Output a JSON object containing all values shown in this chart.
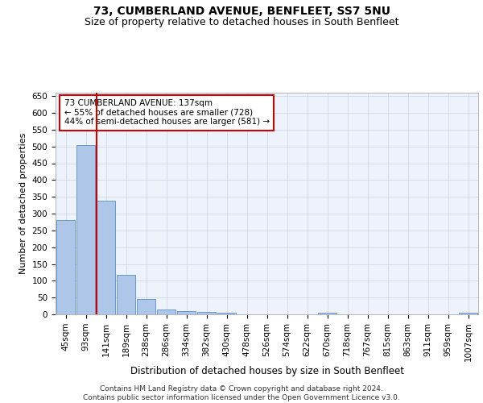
{
  "title1": "73, CUMBERLAND AVENUE, BENFLEET, SS7 5NU",
  "title2": "Size of property relative to detached houses in South Benfleet",
  "xlabel": "Distribution of detached houses by size in South Benfleet",
  "ylabel": "Number of detached properties",
  "categories": [
    "45sqm",
    "93sqm",
    "141sqm",
    "189sqm",
    "238sqm",
    "286sqm",
    "334sqm",
    "382sqm",
    "430sqm",
    "478sqm",
    "526sqm",
    "574sqm",
    "622sqm",
    "670sqm",
    "718sqm",
    "767sqm",
    "815sqm",
    "863sqm",
    "911sqm",
    "959sqm",
    "1007sqm"
  ],
  "values": [
    280,
    505,
    338,
    118,
    46,
    15,
    10,
    8,
    5,
    0,
    0,
    0,
    0,
    6,
    0,
    0,
    0,
    0,
    0,
    0,
    5
  ],
  "bar_color": "#aec6e8",
  "bar_edge_color": "#5a8fc4",
  "highlight_bar_index": 2,
  "highlight_color": "#cc0000",
  "annotation_text": "73 CUMBERLAND AVENUE: 137sqm\n← 55% of detached houses are smaller (728)\n44% of semi-detached houses are larger (581) →",
  "annotation_box_color": "#cc0000",
  "ylim": [
    0,
    660
  ],
  "yticks": [
    0,
    50,
    100,
    150,
    200,
    250,
    300,
    350,
    400,
    450,
    500,
    550,
    600,
    650
  ],
  "footer": "Contains HM Land Registry data © Crown copyright and database right 2024.\nContains public sector information licensed under the Open Government Licence v3.0.",
  "bg_color": "#eef2fb",
  "grid_color": "#c8d0e0",
  "title1_fontsize": 10,
  "title2_fontsize": 9,
  "xlabel_fontsize": 8.5,
  "ylabel_fontsize": 8,
  "tick_fontsize": 7.5,
  "annotation_fontsize": 7.5,
  "footer_fontsize": 6.5
}
